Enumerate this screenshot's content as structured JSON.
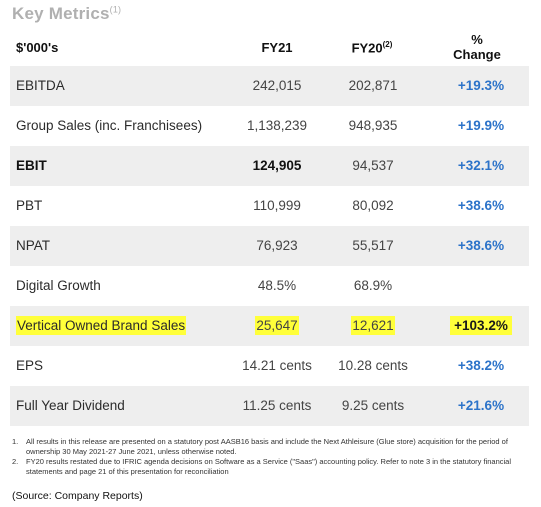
{
  "title": "Key Metrics",
  "title_note": "(1)",
  "header": {
    "label": "$'000's",
    "fy21": "FY21",
    "fy20": "FY20",
    "fy20_note": "(2)",
    "change_line1": "%",
    "change_line2": "Change"
  },
  "rows": [
    {
      "label": "EBITDA",
      "fy21": "242,015",
      "fy20": "202,871",
      "change": "+19.3%"
    },
    {
      "label": "Group Sales (inc. Franchisees)",
      "fy21": "1,138,239",
      "fy20": "948,935",
      "change": "+19.9%"
    },
    {
      "label": "EBIT",
      "fy21": "124,905",
      "fy20": "94,537",
      "change": "+32.1%"
    },
    {
      "label": "PBT",
      "fy21": "110,999",
      "fy20": "80,092",
      "change": "+38.6%"
    },
    {
      "label": "NPAT",
      "fy21": "76,923",
      "fy20": "55,517",
      "change": "+38.6%"
    },
    {
      "label": "Digital Growth",
      "fy21": "48.5%",
      "fy20": "68.9%",
      "change": ""
    },
    {
      "label": "Vertical Owned Brand Sales",
      "fy21": "25,647",
      "fy20": "12,621",
      "change": "+103.2%"
    },
    {
      "label": "EPS",
      "fy21": "14.21 cents",
      "fy20": "10.28 cents",
      "change": "+38.2%"
    },
    {
      "label": "Full Year Dividend",
      "fy21": "11.25 cents",
      "fy20": "9.25 cents",
      "change": "+21.6%"
    }
  ],
  "notes": [
    {
      "num": "1.",
      "text": "All results in this release are presented on a statutory post AASB16 basis and include the Next Athleisure (Glue store) acquisition for the period of ownership 30 May 2021-27 June 2021, unless otherwise noted."
    },
    {
      "num": "2.",
      "text": "FY20 results restated due to IFRIC agenda decisions on Software as a Service (\"Saas\") accounting policy. Refer to note 3 in the statutory financial statements and page 21 of this presentation for reconciliation"
    }
  ],
  "source": "(Source: Company Reports)",
  "colors": {
    "change": "#2c73c9",
    "highlight": "#ffff3a",
    "row_shade": "#eeeeee",
    "title": "#b0b0b0"
  }
}
